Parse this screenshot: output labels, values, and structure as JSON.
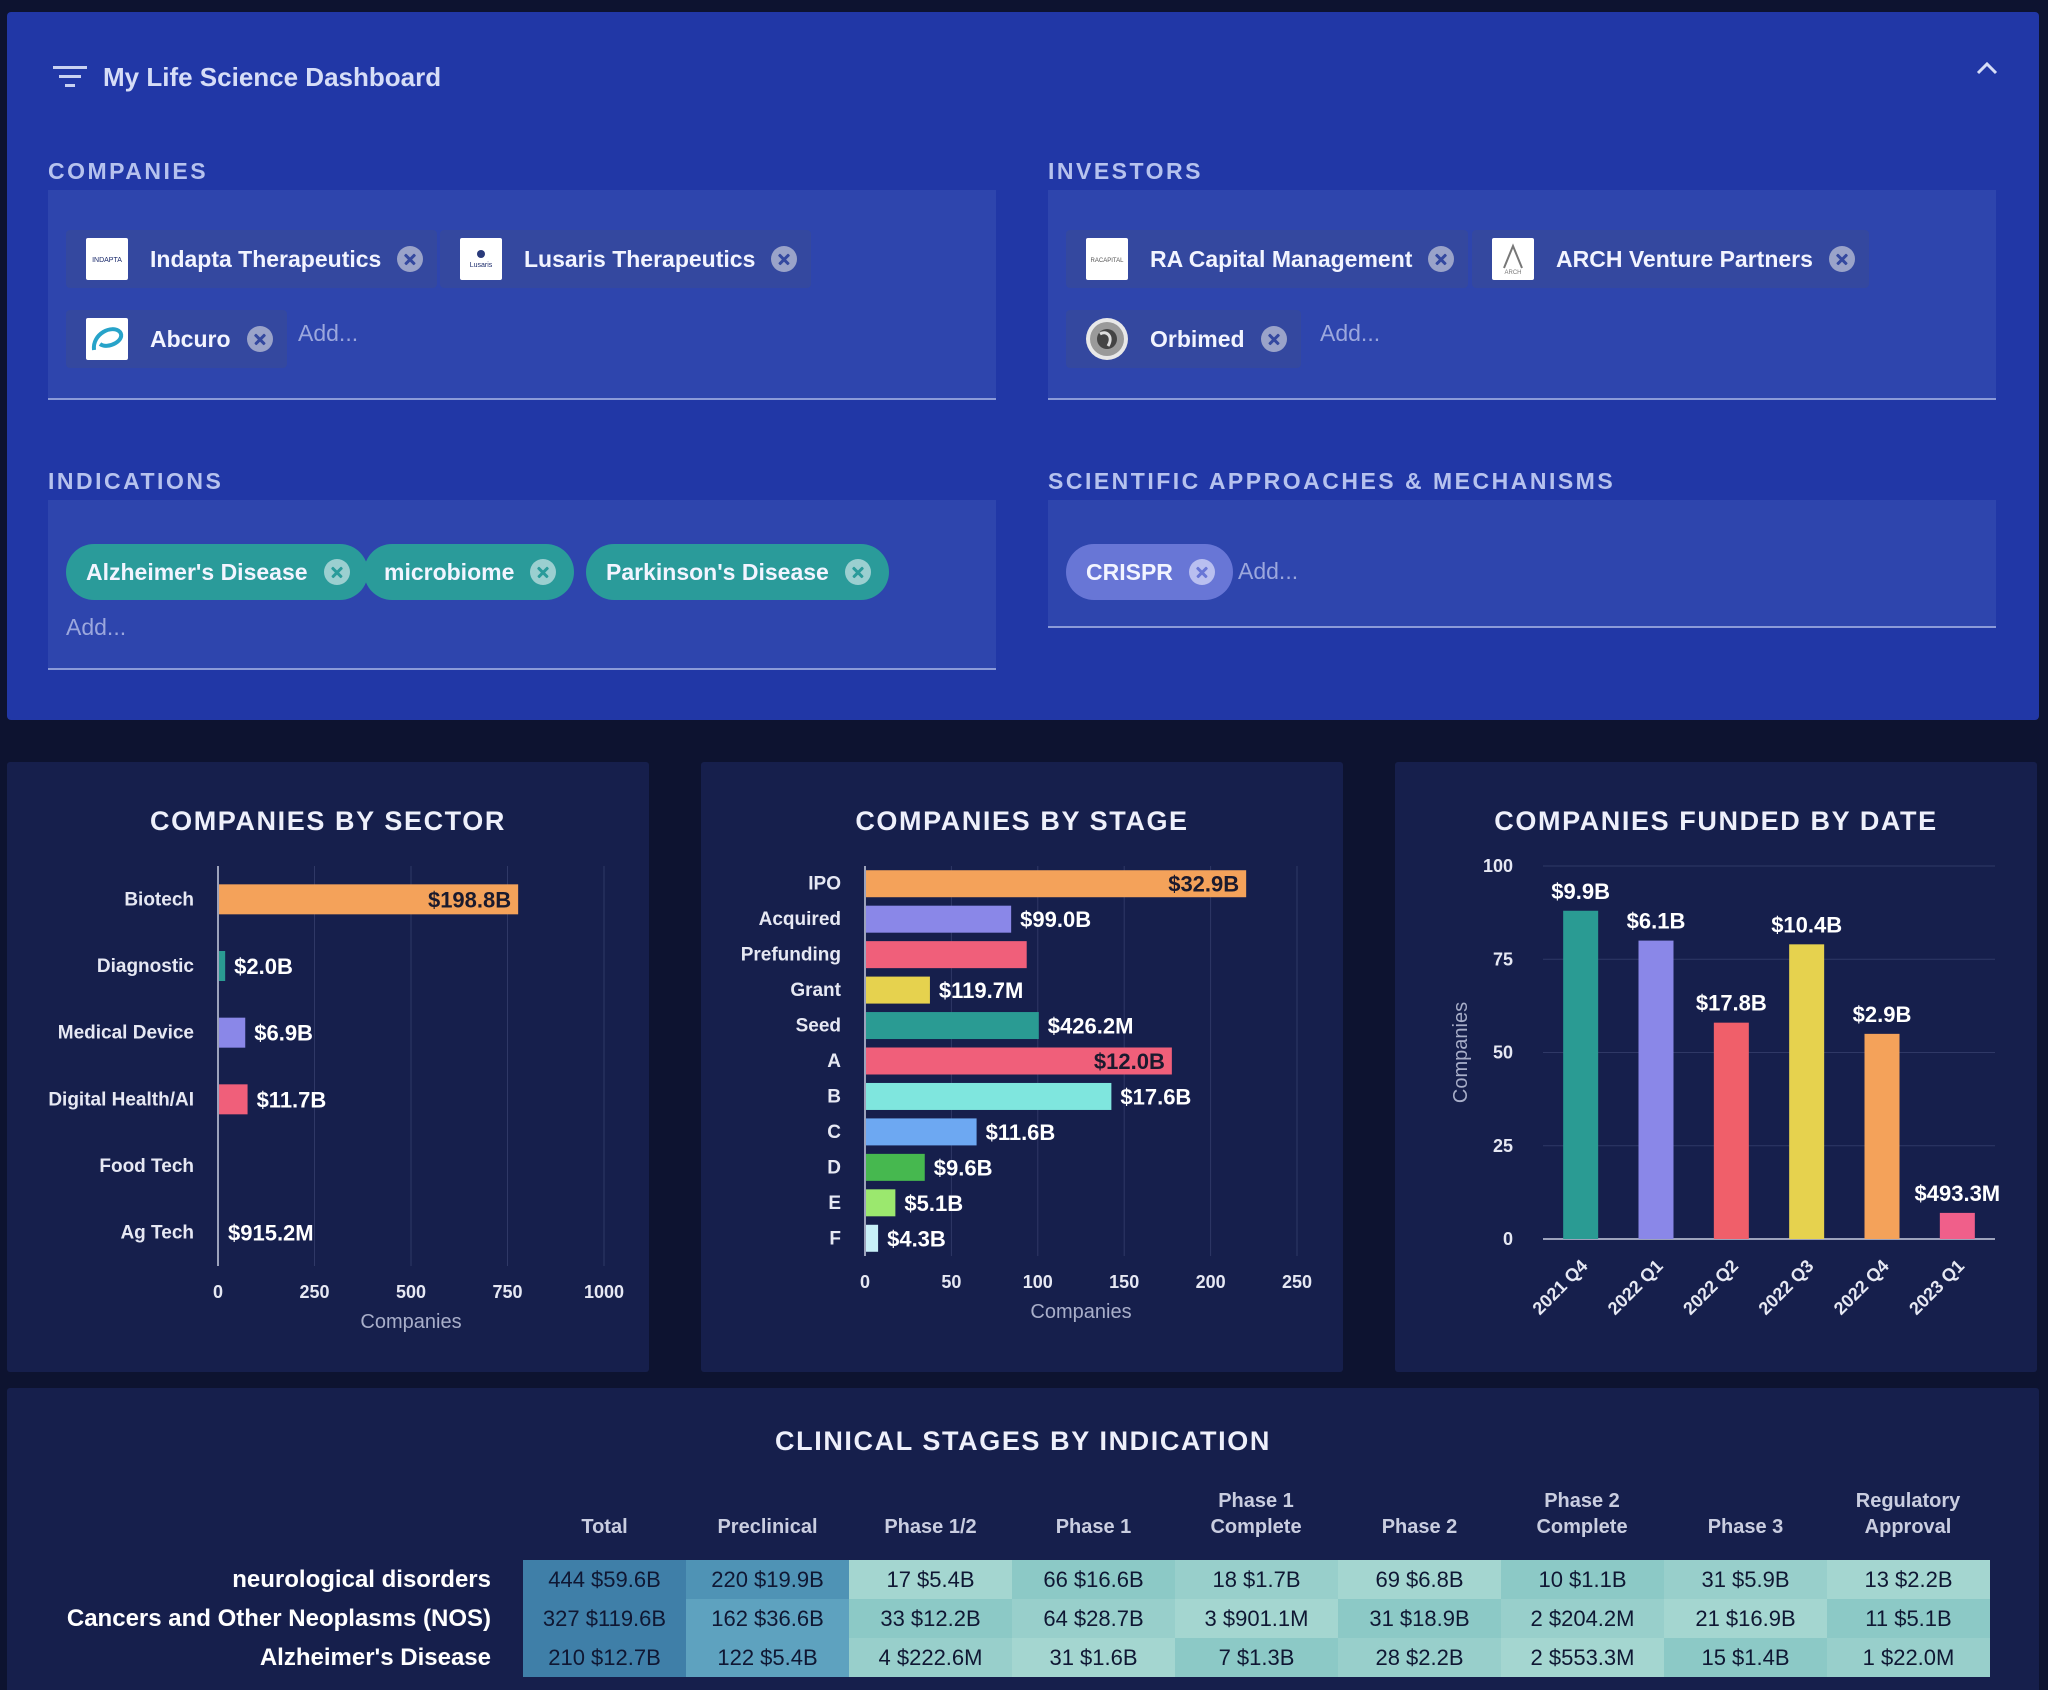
{
  "header": {
    "title": "My Life Science Dashboard"
  },
  "companies": {
    "label": "COMPANIES",
    "chips": [
      {
        "name": "Indapta Therapeutics",
        "logo_text": "INDAPTA"
      },
      {
        "name": "Lusaris Therapeutics",
        "logo_text": "Lusaris"
      },
      {
        "name": "Abcuro",
        "logo_text": ""
      }
    ],
    "placeholder": "Add..."
  },
  "investors": {
    "label": "INVESTORS",
    "chips": [
      {
        "name": "RA Capital Management",
        "logo_text": "RACAPITAL"
      },
      {
        "name": "ARCH Venture Partners",
        "logo_text": "ARCH"
      },
      {
        "name": "Orbimed",
        "logo_text": ""
      }
    ],
    "placeholder": "Add..."
  },
  "indications": {
    "label": "INDICATIONS",
    "pills": [
      "Alzheimer's Disease",
      "microbiome",
      "Parkinson's Disease"
    ],
    "placeholder": "Add..."
  },
  "approaches": {
    "label": "SCIENTIFIC APPROACHES & MECHANISMS",
    "pills": [
      "CRISPR"
    ],
    "placeholder": "Add..."
  },
  "chart_data": [
    {
      "type": "bar",
      "orientation": "horizontal",
      "title": "COMPANIES BY SECTOR",
      "xlabel": "Companies",
      "xlim": [
        0,
        1000
      ],
      "xticks": [
        0,
        250,
        500,
        750,
        1000
      ],
      "categories": [
        "Biotech",
        "Diagnostic",
        "Medical Device",
        "Digital Health/AI",
        "Food Tech",
        "Ag Tech"
      ],
      "values": [
        775,
        16,
        68,
        74,
        0,
        0
      ],
      "data_labels": [
        "$198.8B",
        "$2.0B",
        "$6.9B",
        "$11.7B",
        "",
        "$915.2M"
      ],
      "colors": [
        "#f4a25a",
        "#2a9b93",
        "#8a87e8",
        "#f05f7a",
        "#7dd8c8",
        "#f05f7a"
      ]
    },
    {
      "type": "bar",
      "orientation": "horizontal",
      "title": "COMPANIES BY STAGE",
      "xlabel": "Companies",
      "xlim": [
        0,
        250
      ],
      "xticks": [
        0,
        50,
        100,
        150,
        200,
        250
      ],
      "categories": [
        "IPO",
        "Acquired",
        "Prefunding",
        "Grant",
        "Seed",
        "A",
        "B",
        "C",
        "D",
        "E",
        "F"
      ],
      "values": [
        220,
        84,
        93,
        37,
        100,
        177,
        142,
        64,
        34,
        17,
        7
      ],
      "data_labels": [
        "$32.9B",
        "$99.0B",
        "",
        "$119.7M",
        "$426.2M",
        "$12.0B",
        "$17.6B",
        "$11.6B",
        "$9.6B",
        "$5.1B",
        "$4.3B"
      ],
      "colors": [
        "#f4a25a",
        "#8a87e8",
        "#f05f7a",
        "#e6d24e",
        "#2a9b93",
        "#f05f7a",
        "#7fe6de",
        "#6da8f2",
        "#46b84f",
        "#9be86e",
        "#c8f0f8"
      ]
    },
    {
      "type": "bar",
      "title": "COMPANIES FUNDED BY DATE",
      "ylabel": "Companies",
      "ylim": [
        0,
        100
      ],
      "yticks": [
        0,
        25,
        50,
        75,
        100
      ],
      "categories": [
        "2021 Q4",
        "2022 Q1",
        "2022 Q2",
        "2022 Q3",
        "2022 Q4",
        "2023 Q1"
      ],
      "values": [
        88,
        80,
        58,
        79,
        55,
        7
      ],
      "data_labels": [
        "$9.9B",
        "$6.1B",
        "$17.8B",
        "$10.4B",
        "$2.9B",
        "$493.3M"
      ],
      "colors": [
        "#2a9b93",
        "#8a87e8",
        "#f05f6a",
        "#e6d24e",
        "#f4a25a",
        "#f05f8a"
      ]
    },
    {
      "type": "table",
      "title": "CLINICAL STAGES BY INDICATION",
      "columns": [
        "Total",
        "Preclinical",
        "Phase 1/2",
        "Phase 1",
        "Phase 1 Complete",
        "Phase 2",
        "Phase 2 Complete",
        "Phase 3",
        "Regulatory Approval"
      ],
      "rows": [
        {
          "label": "neurological disorders",
          "cells": [
            "444 $59.6B",
            "220 $19.9B",
            "17 $5.4B",
            "66 $16.6B",
            "18 $1.7B",
            "69 $6.8B",
            "10 $1.1B",
            "31 $5.9B",
            "13 $2.2B"
          ]
        },
        {
          "label": "Cancers and Other Neoplasms (NOS)",
          "cells": [
            "327 $119.6B",
            "162 $36.6B",
            "33 $12.2B",
            "64 $28.7B",
            "3 $901.1M",
            "31 $18.9B",
            "2 $204.2M",
            "21 $16.9B",
            "11 $5.1B"
          ]
        },
        {
          "label": "Alzheimer's Disease",
          "cells": [
            "210 $12.7B",
            "122 $5.4B",
            "4 $222.6M",
            "31 $1.6B",
            "7 $1.3B",
            "28 $2.2B",
            "2 $553.3M",
            "15 $1.4B",
            "1 $22.0M"
          ]
        }
      ]
    }
  ]
}
